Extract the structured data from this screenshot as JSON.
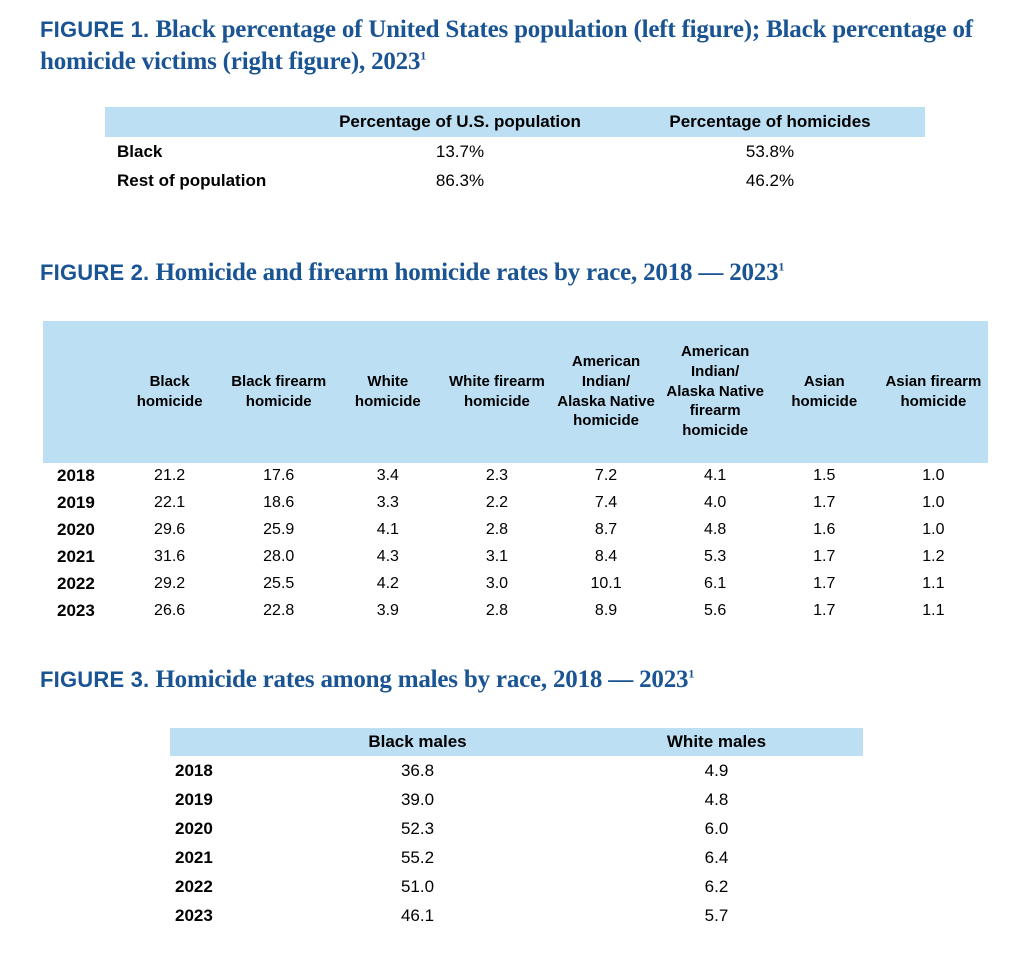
{
  "colors": {
    "title": "#1A5493",
    "band": "#BCDFF3",
    "text": "#000000"
  },
  "figure1": {
    "label": "FIGURE 1.",
    "title": "Black percentage of United States population (left figure); Black percentage of homicide victims (right figure), 2023",
    "footnote_mark": "1",
    "table": {
      "columns": [
        "",
        "Percentage of U.S. population",
        "Percentage of homicides"
      ],
      "rows": [
        {
          "label": "Black",
          "values": [
            "13.7%",
            "53.8%"
          ]
        },
        {
          "label": "Rest of population",
          "values": [
            "86.3%",
            "46.2%"
          ]
        }
      ]
    }
  },
  "figure2": {
    "label": "FIGURE 2.",
    "title": "Homicide and firearm homicide rates by race, 2018 — 2023",
    "footnote_mark": "1",
    "table": {
      "columns": [
        "",
        "Black homicide",
        "Black firearm homicide",
        "White homicide",
        "White firearm homicide",
        "American Indian/ Alaska Native homicide",
        "American Indian/ Alaska Native firearm homicide",
        "Asian homicide",
        "Asian firearm homicide"
      ],
      "rows": [
        {
          "label": "2018",
          "values": [
            "21.2",
            "17.6",
            "3.4",
            "2.3",
            "7.2",
            "4.1",
            "1.5",
            "1.0"
          ]
        },
        {
          "label": "2019",
          "values": [
            "22.1",
            "18.6",
            "3.3",
            "2.2",
            "7.4",
            "4.0",
            "1.7",
            "1.0"
          ]
        },
        {
          "label": "2020",
          "values": [
            "29.6",
            "25.9",
            "4.1",
            "2.8",
            "8.7",
            "4.8",
            "1.6",
            "1.0"
          ]
        },
        {
          "label": "2021",
          "values": [
            "31.6",
            "28.0",
            "4.3",
            "3.1",
            "8.4",
            "5.3",
            "1.7",
            "1.2"
          ]
        },
        {
          "label": "2022",
          "values": [
            "29.2",
            "25.5",
            "4.2",
            "3.0",
            "10.1",
            "6.1",
            "1.7",
            "1.1"
          ]
        },
        {
          "label": "2023",
          "values": [
            "26.6",
            "22.8",
            "3.9",
            "2.8",
            "8.9",
            "5.6",
            "1.7",
            "1.1"
          ]
        }
      ]
    }
  },
  "figure3": {
    "label": "FIGURE 3.",
    "title": "Homicide rates among males by race, 2018 — 2023",
    "footnote_mark": "1",
    "table": {
      "columns": [
        "",
        "Black males",
        "White males"
      ],
      "rows": [
        {
          "label": "2018",
          "values": [
            "36.8",
            "4.9"
          ]
        },
        {
          "label": "2019",
          "values": [
            "39.0",
            "4.8"
          ]
        },
        {
          "label": "2020",
          "values": [
            "52.3",
            "6.0"
          ]
        },
        {
          "label": "2021",
          "values": [
            "55.2",
            "6.4"
          ]
        },
        {
          "label": "2022",
          "values": [
            "51.0",
            "6.2"
          ]
        },
        {
          "label": "2023",
          "values": [
            "46.1",
            "5.7"
          ]
        }
      ]
    }
  }
}
